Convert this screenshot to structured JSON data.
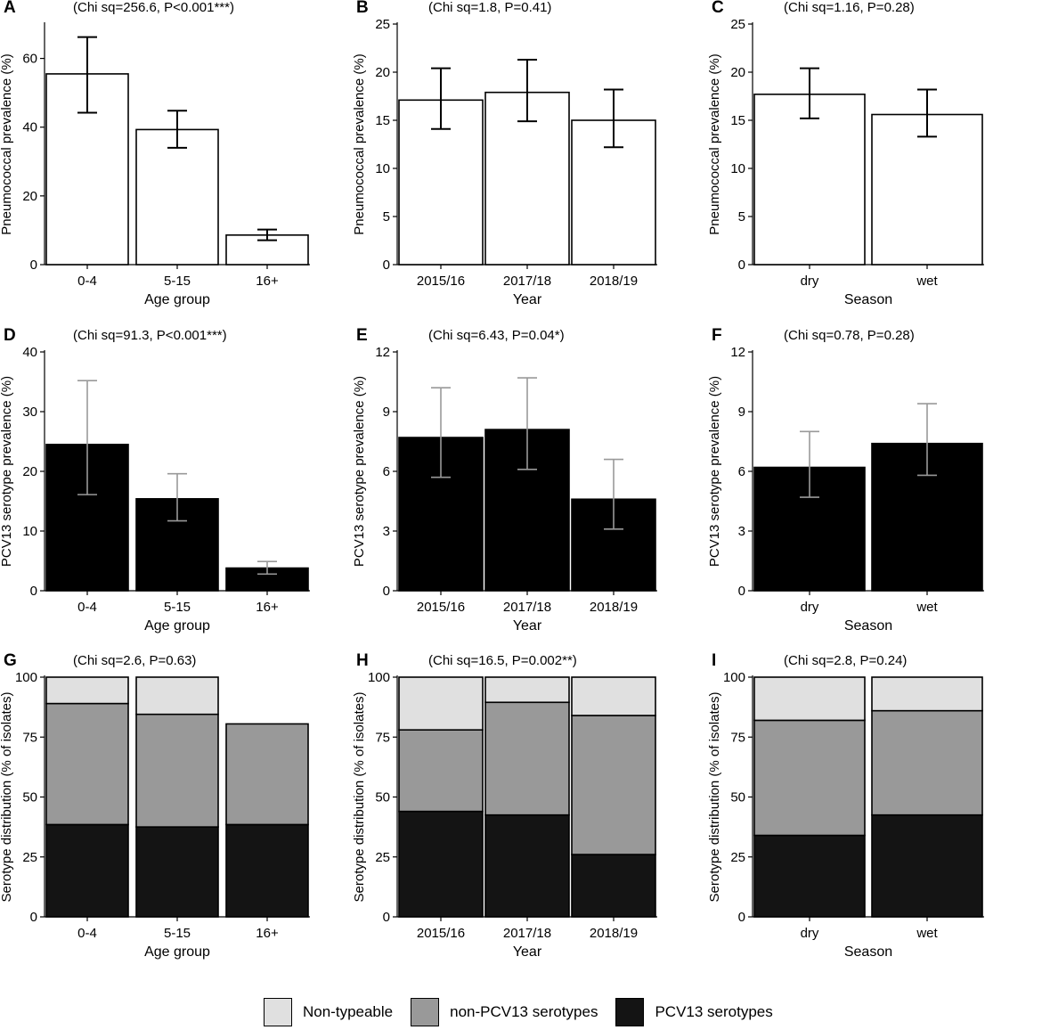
{
  "colors": {
    "hollow_fill": "#ffffff",
    "pcv13_fill": "#000000",
    "errorbar_black": "#000000",
    "errorbar_grey": "#999999",
    "non_typeable": "#e0e0e0",
    "non_pcv13": "#999999",
    "pcv13_stack": "#141414"
  },
  "legend": [
    {
      "label": "Non-typeable",
      "color": "#e0e0e0"
    },
    {
      "label": "non-PCV13 serotypes",
      "color": "#999999"
    },
    {
      "label": "PCV13 serotypes",
      "color": "#141414"
    }
  ],
  "chart_data": [
    {
      "panel": "A",
      "type": "bar",
      "stat": "(Chi sq=256.6, P<0.001***)",
      "xlabel": "Age group",
      "ylabel": "Pneumococcal prevalence (%)",
      "categories": [
        "0-4",
        "5-15",
        "16+"
      ],
      "values": [
        55.5,
        39.3,
        8.6
      ],
      "err_low": [
        44.2,
        34.0,
        7.1
      ],
      "err_high": [
        66.2,
        44.8,
        10.2
      ],
      "ylim": [
        0,
        70
      ],
      "yticks": [
        0,
        20,
        40,
        60
      ],
      "style": "hollow"
    },
    {
      "panel": "B",
      "type": "bar",
      "stat": "(Chi sq=1.8, P=0.41)",
      "xlabel": "Year",
      "ylabel": "Pneumococcal prevalence (%)",
      "categories": [
        "2015/16",
        "2017/18",
        "2018/19"
      ],
      "values": [
        17.1,
        17.9,
        15.0
      ],
      "err_low": [
        14.1,
        14.9,
        12.2
      ],
      "err_high": [
        20.4,
        21.3,
        18.2
      ],
      "ylim": [
        0,
        25
      ],
      "yticks": [
        0,
        5,
        10,
        15,
        20,
        25
      ],
      "style": "hollow"
    },
    {
      "panel": "C",
      "type": "bar",
      "stat": "(Chi sq=1.16, P=0.28)",
      "xlabel": "Season",
      "ylabel": "Pneumococcal prevalence (%)",
      "categories": [
        "dry",
        "wet"
      ],
      "values": [
        17.7,
        15.6
      ],
      "err_low": [
        15.2,
        13.3
      ],
      "err_high": [
        20.4,
        18.2
      ],
      "ylim": [
        0,
        25
      ],
      "yticks": [
        0,
        5,
        10,
        15,
        20,
        25
      ],
      "style": "hollow"
    },
    {
      "panel": "D",
      "type": "bar",
      "stat": "(Chi sq=91.3, P<0.001***)",
      "xlabel": "Age group",
      "ylabel": "PCV13 serotype prevalence (%)",
      "categories": [
        "0-4",
        "5-15",
        "16+"
      ],
      "values": [
        24.5,
        15.4,
        3.8
      ],
      "err_low": [
        16.1,
        11.7,
        2.8
      ],
      "err_high": [
        35.2,
        19.6,
        4.9
      ],
      "ylim": [
        0,
        40
      ],
      "yticks": [
        0,
        10,
        20,
        30,
        40
      ],
      "style": "solid"
    },
    {
      "panel": "E",
      "type": "bar",
      "stat": "(Chi sq=6.43, P=0.04*)",
      "xlabel": "Year",
      "ylabel": "PCV13 serotype prevalence (%)",
      "categories": [
        "2015/16",
        "2017/18",
        "2018/19"
      ],
      "values": [
        7.7,
        8.1,
        4.6
      ],
      "err_low": [
        5.7,
        6.1,
        3.1
      ],
      "err_high": [
        10.2,
        10.7,
        6.6
      ],
      "ylim": [
        0,
        12
      ],
      "yticks": [
        0,
        3,
        6,
        9,
        12
      ],
      "style": "solid"
    },
    {
      "panel": "F",
      "type": "bar",
      "stat": "(Chi sq=0.78, P=0.28)",
      "xlabel": "Season",
      "ylabel": "PCV13 serotype prevalence (%)",
      "categories": [
        "dry",
        "wet"
      ],
      "values": [
        6.2,
        7.4
      ],
      "err_low": [
        4.7,
        5.8
      ],
      "err_high": [
        8.0,
        9.4
      ],
      "ylim": [
        0,
        12
      ],
      "yticks": [
        0,
        3,
        6,
        9,
        12
      ],
      "style": "solid"
    },
    {
      "panel": "G",
      "type": "stacked-bar",
      "stat": "(Chi sq=2.6, P=0.63)",
      "xlabel": "Age group",
      "ylabel": "Serotype distribution (% of isolates)",
      "categories": [
        "0-4",
        "5-15",
        "16+"
      ],
      "series": [
        {
          "name": "PCV13 serotypes",
          "values": [
            38.5,
            37.5,
            38.5
          ]
        },
        {
          "name": "non-PCV13 serotypes",
          "values": [
            50.5,
            47.0,
            42.0
          ]
        },
        {
          "name": "Non-typeable",
          "values": [
            11.0,
            15.5,
            0
          ]
        }
      ],
      "ylim": [
        0,
        100
      ],
      "yticks": [
        0,
        25,
        50,
        75,
        100
      ]
    },
    {
      "panel": "H",
      "type": "stacked-bar",
      "stat": "(Chi sq=16.5, P=0.002**)",
      "xlabel": "Year",
      "ylabel": "Serotype distribution (% of isolates)",
      "categories": [
        "2015/16",
        "2017/18",
        "2018/19"
      ],
      "series": [
        {
          "name": "PCV13 serotypes",
          "values": [
            44.0,
            42.5,
            26.0
          ]
        },
        {
          "name": "non-PCV13 serotypes",
          "values": [
            34.0,
            47.0,
            58.0
          ]
        },
        {
          "name": "Non-typeable",
          "values": [
            22.0,
            10.5,
            16.0
          ]
        }
      ],
      "ylim": [
        0,
        100
      ],
      "yticks": [
        0,
        25,
        50,
        75,
        100
      ]
    },
    {
      "panel": "I",
      "type": "stacked-bar",
      "stat": "(Chi sq=2.8, P=0.24)",
      "xlabel": "Season",
      "ylabel": "Serotype distribution (% of isolates)",
      "categories": [
        "dry",
        "wet"
      ],
      "series": [
        {
          "name": "PCV13 serotypes",
          "values": [
            34.0,
            42.5
          ]
        },
        {
          "name": "non-PCV13 serotypes",
          "values": [
            48.0,
            43.5
          ]
        },
        {
          "name": "Non-typeable",
          "values": [
            18.0,
            14.0
          ]
        }
      ],
      "ylim": [
        0,
        100
      ],
      "yticks": [
        0,
        25,
        50,
        75,
        100
      ]
    }
  ]
}
